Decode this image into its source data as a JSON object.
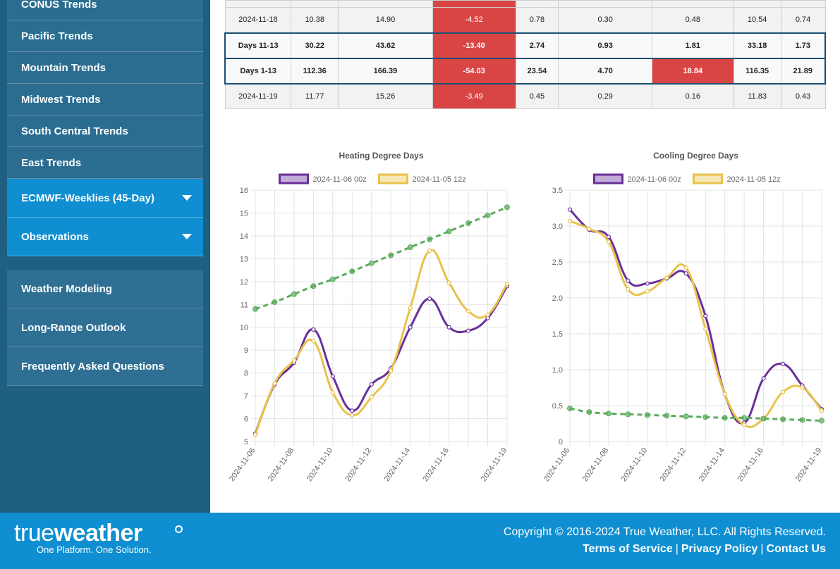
{
  "sidebar": {
    "top_items": [
      "CONUS Trends",
      "Pacific Trends",
      "Mountain Trends",
      "Midwest Trends",
      "South Central Trends",
      "East Trends"
    ],
    "expand_items": [
      "ECMWF-Weeklies (45-Day)",
      "Observations"
    ],
    "bottom_items": [
      "Weather Modeling",
      "Long-Range Outlook",
      "Frequently Asked Questions"
    ]
  },
  "table": {
    "rows": [
      {
        "cells": [
          "2024-11-18",
          "10.38",
          "14.90",
          "-4.52",
          "0.78",
          "0.30",
          "0.48",
          "10.54",
          "0.74"
        ],
        "highlight": false,
        "red": [
          3
        ]
      },
      {
        "cells": [
          "Days 11-13",
          "30.22",
          "43.62",
          "-13.40",
          "2.74",
          "0.93",
          "1.81",
          "33.18",
          "1.73"
        ],
        "highlight": true,
        "red": [
          3
        ]
      },
      {
        "cells": [
          "Days 1-13",
          "112.36",
          "166.39",
          "-54.03",
          "23.54",
          "4.70",
          "18.84",
          "116.35",
          "21.89"
        ],
        "highlight": true,
        "red": [
          3,
          6
        ]
      },
      {
        "cells": [
          "2024-11-19",
          "11.77",
          "15.26",
          "-3.49",
          "0.45",
          "0.29",
          "0.16",
          "11.83",
          "0.43"
        ],
        "highlight": false,
        "red": [
          3
        ]
      }
    ]
  },
  "colors": {
    "purple": "#6a2f9a",
    "yellow": "#e8c24a",
    "green": "#5cab5c",
    "red_cell": "#d94545",
    "accent_blue": "#0f8fd1",
    "sidebar_dark": "#1e5f82"
  },
  "chart_data": [
    {
      "type": "line",
      "title": "Heating Degree Days",
      "x": [
        "2024-11-06",
        "2024-11-07",
        "2024-11-08",
        "2024-11-09",
        "2024-11-10",
        "2024-11-11",
        "2024-11-12",
        "2024-11-13",
        "2024-11-14",
        "2024-11-15",
        "2024-11-16",
        "2024-11-17",
        "2024-11-18",
        "2024-11-19"
      ],
      "x_tick_labels": [
        "2024-11-06",
        "2024-11-08",
        "2024-11-10",
        "2024-11-12",
        "2024-11-14",
        "2024-11-16",
        "2024-11-19"
      ],
      "ylim": [
        5,
        16
      ],
      "y_ticks": [
        5,
        6,
        7,
        8,
        9,
        10,
        11,
        12,
        13,
        14,
        15,
        16
      ],
      "legend_position": "top",
      "series": [
        {
          "name": "2024-11-06 00z",
          "color": "#6a2f9a",
          "values": [
            5.35,
            7.5,
            8.45,
            9.9,
            7.85,
            6.35,
            7.5,
            8.2,
            10.0,
            11.25,
            10.0,
            9.85,
            10.4,
            11.8
          ]
        },
        {
          "name": "2024-11-05 12z",
          "color": "#e8c24a",
          "values": [
            5.3,
            7.55,
            8.55,
            9.4,
            7.15,
            6.15,
            6.95,
            8.1,
            10.85,
            13.35,
            11.95,
            10.7,
            10.55,
            11.9
          ]
        },
        {
          "name": "",
          "color": "#5cab5c",
          "dashed": true,
          "values": [
            10.8,
            11.1,
            11.45,
            11.8,
            12.1,
            12.45,
            12.8,
            13.15,
            13.5,
            13.85,
            14.2,
            14.55,
            14.9,
            15.25
          ]
        }
      ]
    },
    {
      "type": "line",
      "title": "Cooling Degree Days",
      "x": [
        "2024-11-06",
        "2024-11-07",
        "2024-11-08",
        "2024-11-09",
        "2024-11-10",
        "2024-11-11",
        "2024-11-12",
        "2024-11-13",
        "2024-11-14",
        "2024-11-15",
        "2024-11-16",
        "2024-11-17",
        "2024-11-18",
        "2024-11-19"
      ],
      "x_tick_labels": [
        "2024-11-06",
        "2024-11-08",
        "2024-11-10",
        "2024-11-12",
        "2024-11-14",
        "2024-11-16",
        "2024-11-19"
      ],
      "ylim": [
        0,
        3.5
      ],
      "y_ticks": [
        "0",
        "0.5",
        "1.0",
        "1.5",
        "2.0",
        "2.5",
        "3.0",
        "3.5"
      ],
      "legend_position": "top",
      "series": [
        {
          "name": "2024-11-06 00z",
          "color": "#6a2f9a",
          "values": [
            3.23,
            2.95,
            2.85,
            2.24,
            2.2,
            2.27,
            2.34,
            1.75,
            0.66,
            0.26,
            0.88,
            1.08,
            0.78,
            0.45
          ]
        },
        {
          "name": "2024-11-05 12z",
          "color": "#e8c24a",
          "values": [
            3.07,
            2.96,
            2.78,
            2.12,
            2.09,
            2.28,
            2.42,
            1.57,
            0.66,
            0.23,
            0.32,
            0.69,
            0.75,
            0.43
          ]
        },
        {
          "name": "",
          "color": "#5cab5c",
          "dashed": true,
          "values": [
            0.46,
            0.41,
            0.39,
            0.38,
            0.37,
            0.36,
            0.35,
            0.34,
            0.33,
            0.33,
            0.32,
            0.31,
            0.3,
            0.29
          ]
        }
      ]
    }
  ],
  "footer": {
    "logo_thin": "true",
    "logo_bold": "weather",
    "tagline": "One Platform. One Solution.",
    "copyright": "Copyright © 2016-2024 True Weather, LLC. All Rights Reserved.",
    "links": [
      "Terms of Service",
      "Privacy Policy",
      "Contact Us"
    ]
  }
}
